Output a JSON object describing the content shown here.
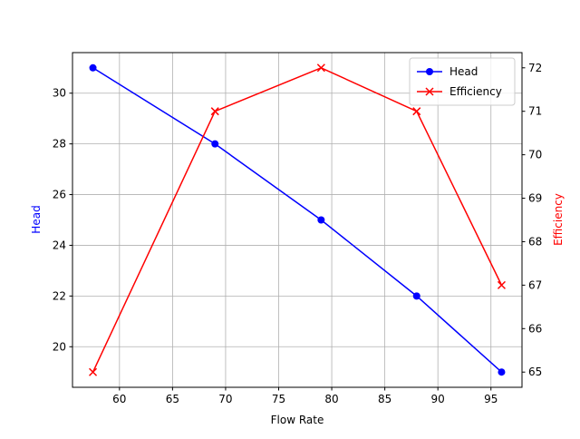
{
  "chart_data": {
    "type": "line",
    "x_label": "Flow Rate",
    "y_label": "Head",
    "y2_label": "Efficiency",
    "x": [
      57.5,
      69,
      79,
      88,
      96
    ],
    "series": [
      {
        "name": "Head",
        "color": "#0000ff",
        "marker": "circle",
        "values": [
          31,
          28,
          25,
          22,
          19
        ]
      },
      {
        "name": "Efficiency",
        "color": "#ff0000",
        "marker": "x",
        "axis": "y2",
        "values": [
          65,
          71,
          72,
          71,
          67
        ]
      }
    ],
    "xlim": [
      55.575,
      97.925
    ],
    "xticks": [
      60,
      65,
      70,
      75,
      80,
      85,
      90,
      95
    ],
    "ylim": [
      18.4,
      31.6
    ],
    "yticks": [
      20,
      22,
      24,
      26,
      28,
      30
    ],
    "y2lim": [
      64.65,
      72.35
    ],
    "y2ticks": [
      65,
      66,
      67,
      68,
      69,
      70,
      71,
      72
    ],
    "grid": true,
    "legend": "upper right"
  }
}
